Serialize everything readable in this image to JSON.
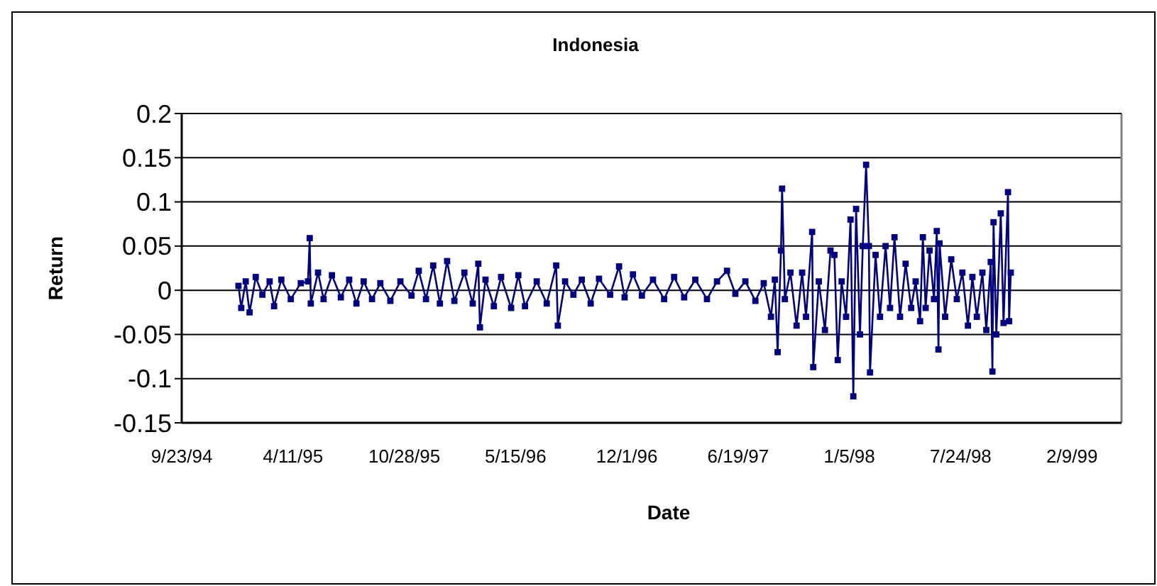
{
  "chart_data": {
    "type": "line",
    "title": "Indonesia",
    "xlabel": "Date",
    "ylabel": "Return",
    "xlim": [
      "1994-09-23",
      "1999-05-09"
    ],
    "xticks": [
      {
        "value": "1994-09-23",
        "label": "9/23/94"
      },
      {
        "value": "1995-04-11",
        "label": "4/11/95"
      },
      {
        "value": "1995-10-28",
        "label": "10/28/95"
      },
      {
        "value": "1996-05-15",
        "label": "5/15/96"
      },
      {
        "value": "1996-12-01",
        "label": "12/1/96"
      },
      {
        "value": "1997-06-19",
        "label": "6/19/97"
      },
      {
        "value": "1998-01-05",
        "label": "1/5/98"
      },
      {
        "value": "1998-07-24",
        "label": "7/24/98"
      },
      {
        "value": "1999-02-09",
        "label": "2/9/99"
      }
    ],
    "ylim": [
      -0.15,
      0.2
    ],
    "yticks": [
      -0.15,
      -0.1,
      -0.05,
      0,
      0.05,
      0.1,
      0.15,
      0.2
    ],
    "grid": "y",
    "marker": "square",
    "line_style": "solid",
    "x": [
      "1995-01-03",
      "1995-01-08",
      "1995-01-16",
      "1995-01-23",
      "1995-02-03",
      "1995-02-15",
      "1995-02-28",
      "1995-03-08",
      "1995-03-21",
      "1995-04-07",
      "1995-04-25",
      "1995-05-08",
      "1995-05-11",
      "1995-05-13",
      "1995-05-26",
      "1995-06-05",
      "1995-06-20",
      "1995-07-06",
      "1995-07-21",
      "1995-08-03",
      "1995-08-16",
      "1995-08-31",
      "1995-09-15",
      "1995-10-03",
      "1995-10-21",
      "1995-11-10",
      "1995-11-23",
      "1995-12-06",
      "1995-12-19",
      "1995-12-31",
      "1996-01-13",
      "1996-01-26",
      "1996-02-13",
      "1996-02-28",
      "1996-03-09",
      "1996-03-12",
      "1996-03-22",
      "1996-04-06",
      "1996-04-19",
      "1996-05-07",
      "1996-05-20",
      "1996-06-01",
      "1996-06-22",
      "1996-07-10",
      "1996-07-27",
      "1996-07-30",
      "1996-08-12",
      "1996-08-27",
      "1996-09-11",
      "1996-09-27",
      "1996-10-12",
      "1996-11-01",
      "1996-11-17",
      "1996-11-27",
      "1996-12-12",
      "1996-12-28",
      "1997-01-17",
      "1997-02-06",
      "1997-02-24",
      "1997-03-14",
      "1997-04-03",
      "1997-04-24",
      "1997-05-12",
      "1997-05-30",
      "1997-06-14",
      "1997-07-02",
      "1997-07-20",
      "1997-08-04",
      "1997-08-17",
      "1997-08-24",
      "1997-08-29",
      "1997-09-04",
      "1997-09-06",
      "1997-09-11",
      "1997-09-21",
      "1997-10-02",
      "1997-10-12",
      "1997-10-19",
      "1997-10-30",
      "1997-11-01",
      "1997-11-11",
      "1997-11-22",
      "1997-12-02",
      "1997-12-09",
      "1997-12-15",
      "1997-12-22",
      "1997-12-30",
      "1998-01-07",
      "1998-01-12",
      "1998-01-17",
      "1998-01-24",
      "1998-01-29",
      "1998-02-04",
      "1998-02-09",
      "1998-02-11",
      "1998-02-21",
      "1998-03-01",
      "1998-03-11",
      "1998-03-19",
      "1998-03-27",
      "1998-04-06",
      "1998-04-16",
      "1998-04-26",
      "1998-05-04",
      "1998-05-12",
      "1998-05-17",
      "1998-05-22",
      "1998-05-29",
      "1998-06-06",
      "1998-06-11",
      "1998-06-14",
      "1998-06-16",
      "1998-06-26",
      "1998-07-07",
      "1998-07-17",
      "1998-07-27",
      "1998-08-06",
      "1998-08-14",
      "1998-08-22",
      "1998-09-01",
      "1998-09-08",
      "1998-09-16",
      "1998-09-19",
      "1998-09-21",
      "1998-09-26",
      "1998-10-04",
      "1998-10-09",
      "1998-10-17",
      "1998-10-19",
      "1998-10-22"
    ],
    "series": [
      {
        "color": "#000080",
        "values": [
          0.005,
          -0.02,
          0.01,
          -0.025,
          0.015,
          -0.005,
          0.01,
          -0.018,
          0.012,
          -0.01,
          0.008,
          0.01,
          0.059,
          -0.015,
          0.02,
          -0.01,
          0.017,
          -0.008,
          0.012,
          -0.015,
          0.01,
          -0.01,
          0.008,
          -0.012,
          0.01,
          -0.006,
          0.022,
          -0.01,
          0.028,
          -0.015,
          0.033,
          -0.012,
          0.02,
          -0.015,
          0.03,
          -0.042,
          0.012,
          -0.018,
          0.015,
          -0.02,
          0.017,
          -0.018,
          0.01,
          -0.015,
          0.028,
          -0.04,
          0.01,
          -0.005,
          0.012,
          -0.015,
          0.013,
          -0.005,
          0.027,
          -0.008,
          0.018,
          -0.006,
          0.012,
          -0.01,
          0.015,
          -0.008,
          0.012,
          -0.01,
          0.01,
          0.022,
          -0.004,
          0.01,
          -0.012,
          0.008,
          -0.03,
          0.012,
          -0.07,
          0.045,
          0.115,
          -0.01,
          0.02,
          -0.04,
          0.02,
          -0.03,
          0.066,
          -0.087,
          0.01,
          -0.045,
          0.045,
          0.04,
          -0.079,
          0.01,
          -0.03,
          0.08,
          -0.12,
          0.092,
          -0.05,
          0.05,
          0.142,
          0.05,
          -0.093,
          0.04,
          -0.03,
          0.05,
          -0.02,
          0.06,
          -0.03,
          0.03,
          -0.02,
          0.01,
          -0.035,
          0.06,
          -0.02,
          0.045,
          -0.01,
          0.067,
          -0.067,
          0.053,
          -0.03,
          0.035,
          -0.01,
          0.02,
          -0.04,
          0.015,
          -0.03,
          0.02,
          -0.045,
          0.032,
          -0.092,
          0.077,
          -0.05,
          0.087,
          -0.037,
          0.111,
          -0.035,
          0.02
        ]
      }
    ]
  }
}
